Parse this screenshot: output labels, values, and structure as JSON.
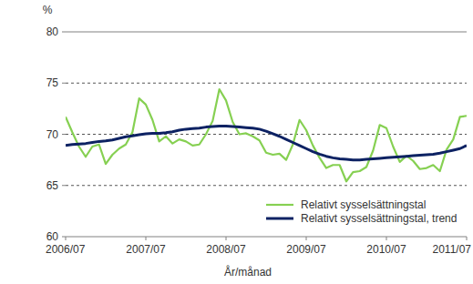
{
  "chart_data": {
    "type": "line",
    "y_label": "%",
    "x_label": "År/månad",
    "categories": [
      "2006/07",
      null,
      null,
      null,
      null,
      null,
      null,
      null,
      null,
      null,
      null,
      null,
      "2007/07",
      null,
      null,
      null,
      null,
      null,
      null,
      null,
      null,
      null,
      null,
      null,
      "2008/07",
      null,
      null,
      null,
      null,
      null,
      null,
      null,
      null,
      null,
      null,
      null,
      "2009/07",
      null,
      null,
      null,
      null,
      null,
      null,
      null,
      null,
      null,
      null,
      null,
      "2010/07",
      null,
      null,
      null,
      null,
      null,
      null,
      null,
      null,
      null,
      null,
      null,
      "2011/07"
    ],
    "series": [
      {
        "name": "Relativt sysselsättningstal",
        "color": "#86d052",
        "values": [
          71.7,
          70.2,
          68.8,
          67.8,
          68.8,
          69.0,
          67.1,
          68.0,
          68.6,
          69.0,
          70.2,
          73.5,
          72.9,
          71.4,
          69.3,
          69.8,
          69.1,
          69.5,
          69.3,
          68.9,
          69.0,
          70.0,
          71.3,
          74.4,
          73.3,
          71.2,
          70.0,
          70.1,
          69.8,
          69.4,
          68.2,
          68.0,
          68.1,
          67.5,
          69.0,
          71.4,
          70.4,
          68.9,
          67.7,
          66.7,
          67.0,
          67.0,
          65.4,
          66.3,
          66.4,
          66.8,
          68.4,
          70.9,
          70.6,
          68.8,
          67.3,
          67.9,
          67.4,
          66.6,
          66.7,
          67.0,
          66.4,
          68.5,
          69.5,
          71.7,
          71.8
        ]
      },
      {
        "name": "Relativt sysselsättningstal, trend",
        "color": "#0d2263",
        "values": [
          68.9,
          69.0,
          69.05,
          69.1,
          69.2,
          69.3,
          69.35,
          69.45,
          69.6,
          69.75,
          69.85,
          69.95,
          70.05,
          70.1,
          70.1,
          70.15,
          70.25,
          70.4,
          70.5,
          70.55,
          70.6,
          70.7,
          70.75,
          70.8,
          70.8,
          70.75,
          70.7,
          70.65,
          70.6,
          70.5,
          70.3,
          70.05,
          69.8,
          69.5,
          69.2,
          68.9,
          68.6,
          68.3,
          68.05,
          67.85,
          67.7,
          67.6,
          67.55,
          67.5,
          67.5,
          67.55,
          67.6,
          67.65,
          67.7,
          67.75,
          67.8,
          67.85,
          67.9,
          67.95,
          68.0,
          68.05,
          68.15,
          68.3,
          68.45,
          68.6,
          68.9
        ]
      }
    ],
    "ylim": [
      60,
      80
    ],
    "yticks": [
      60,
      65,
      70,
      75,
      80
    ],
    "grid": true,
    "legend": "lower right"
  }
}
